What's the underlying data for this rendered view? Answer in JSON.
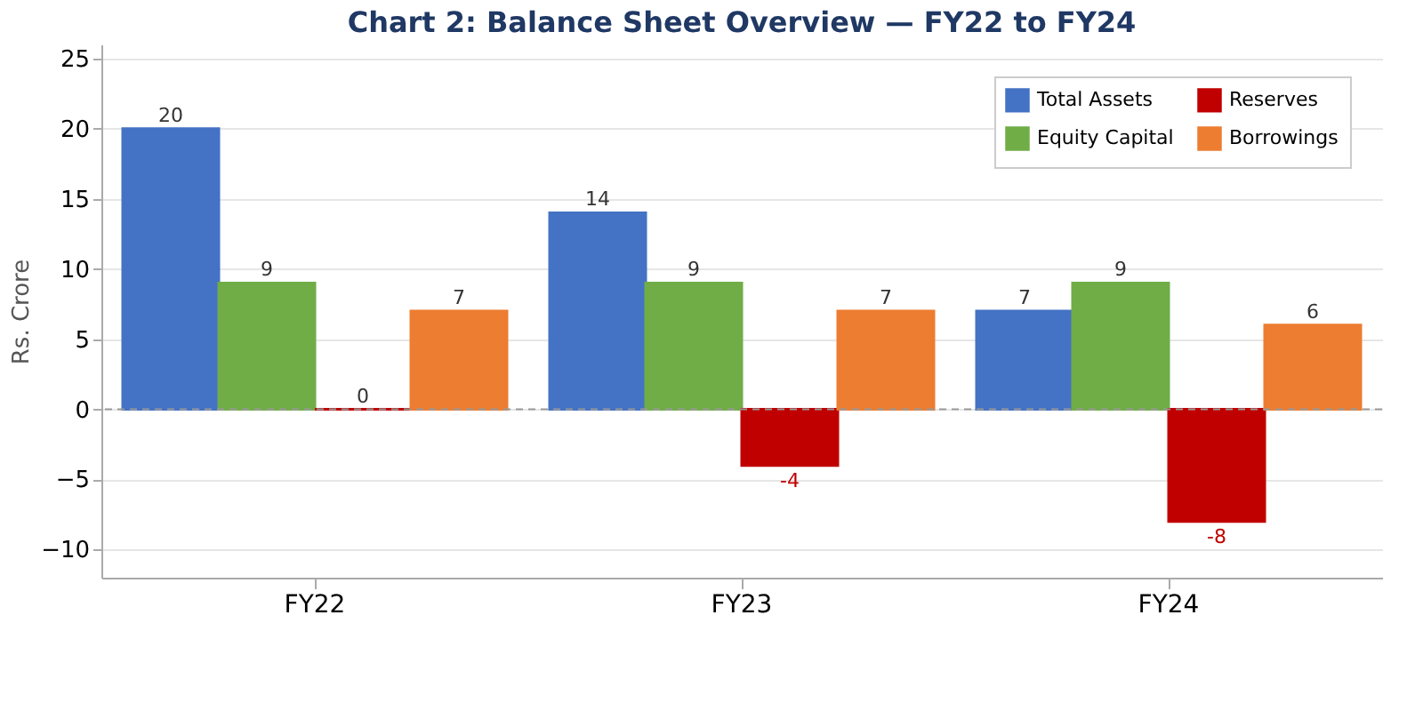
{
  "chart_data": {
    "type": "bar",
    "title": "Chart 2: Balance Sheet Overview — FY22 to FY24",
    "ylabel": "Rs. Crore",
    "categories": [
      "FY22",
      "FY23",
      "FY24"
    ],
    "series": [
      {
        "name": "Total Assets",
        "color": "#4472c4",
        "values": [
          20,
          14,
          7
        ]
      },
      {
        "name": "Equity Capital",
        "color": "#70ad47",
        "values": [
          9,
          9,
          9
        ]
      },
      {
        "name": "Reserves",
        "color": "#c00000",
        "values": [
          0,
          -4,
          -8
        ]
      },
      {
        "name": "Borrowings",
        "color": "#ed7d31",
        "values": [
          7,
          7,
          6
        ]
      }
    ],
    "ylim": [
      -12,
      26
    ],
    "yticks": [
      -10,
      -5,
      0,
      5,
      10,
      15,
      20,
      25
    ],
    "grid": "y",
    "legend": "top right",
    "data_labels": true,
    "ref_lines": [
      {
        "axis": "y",
        "value": 0,
        "color": "#999999",
        "line_style": "dashed"
      }
    ]
  }
}
